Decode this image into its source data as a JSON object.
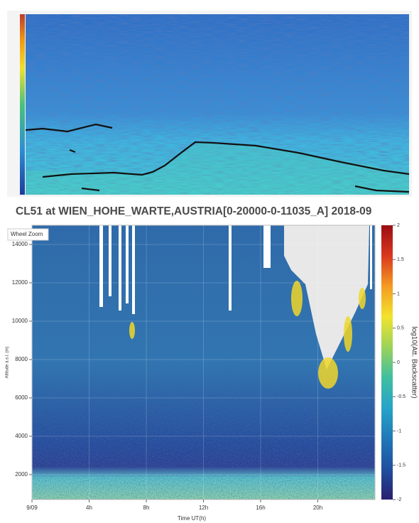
{
  "chart_data": {
    "type": "heatmap",
    "title": "CL51 at WIEN_HOHE_WARTE,AUSTRIA[0-20000-0-11035_A] 2018-09",
    "tool_label": "Wheel Zoom",
    "x_label": "Time UT(h)",
    "y_label": "Altitude a.s.l. (m)",
    "colorbar_label": "log10(Att. Backscatter)",
    "xlim": [
      0,
      24
    ],
    "xticks": [
      {
        "value": 0,
        "label": "9/09"
      },
      {
        "value": 4,
        "label": "4h"
      },
      {
        "value": 8,
        "label": "8h"
      },
      {
        "value": 12,
        "label": "12h"
      },
      {
        "value": 16,
        "label": "16h"
      },
      {
        "value": 20,
        "label": "20h"
      }
    ],
    "ylim": [
      700,
      15000
    ],
    "yticks": [
      2000,
      4000,
      6000,
      8000,
      10000,
      12000,
      14000
    ],
    "clim": [
      -2,
      2
    ],
    "cticks": [
      -2,
      -1.5,
      -1,
      -0.5,
      0,
      0.5,
      1,
      1.5,
      2
    ],
    "colorscale": [
      "#2a1f6e",
      "#1f4fa0",
      "#1f78b8",
      "#27a3c9",
      "#3fbfa0",
      "#9bd35a",
      "#f2e32c",
      "#f59b22",
      "#d9381e",
      "#9b0d14"
    ]
  }
}
